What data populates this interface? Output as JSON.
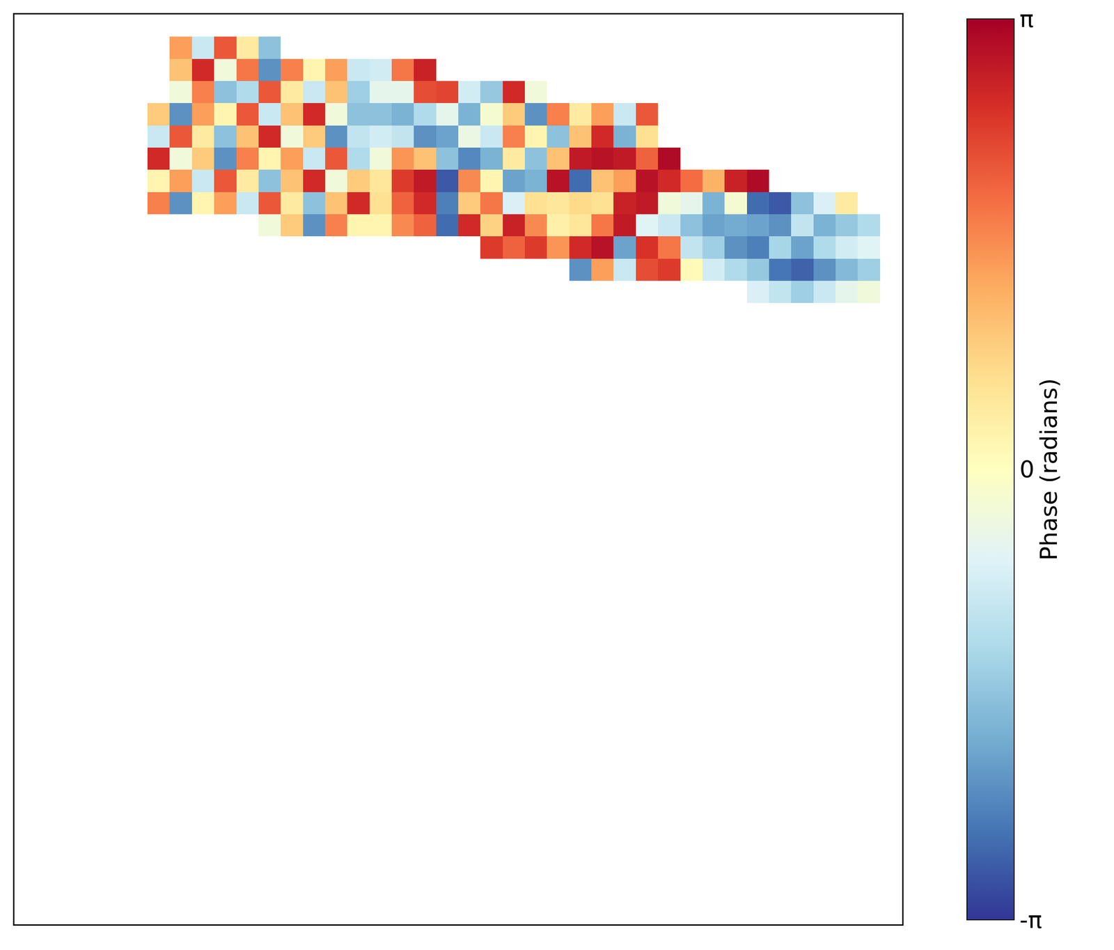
{
  "chart_data": {
    "type": "heatmap",
    "x": [
      0.5,
      1.5,
      2.5,
      3.5,
      4.5,
      5.5,
      6.5,
      7.5,
      8.5,
      9.5,
      10.5,
      11.5,
      12.5,
      13.5,
      14.5,
      15.5,
      16.5,
      17.5,
      18.5,
      19.5,
      20.5,
      21.5,
      22.5,
      23.5,
      24.5,
      25.5,
      26.5,
      27.5,
      28.5,
      29.5,
      30.5,
      31.5,
      32.5,
      33.5,
      34.5,
      35.5,
      36.5,
      37.5,
      38.5,
      39.5
    ],
    "y": [
      39.5,
      38.5,
      37.5,
      36.5,
      35.5,
      34.5,
      33.5,
      32.5,
      31.5,
      30.5,
      29.5,
      28.5
    ],
    "z": [
      [
        null,
        null,
        null,
        null,
        null,
        null,
        null,
        1.4,
        -0.9,
        2.1,
        0.4,
        -1.6,
        null,
        null,
        null,
        null,
        null,
        null,
        null,
        null,
        null,
        null,
        null,
        null,
        null,
        null,
        null,
        null,
        null,
        null,
        null,
        null,
        null,
        null,
        null,
        null,
        null,
        null,
        null,
        null
      ],
      [
        null,
        null,
        null,
        null,
        null,
        null,
        null,
        1.0,
        2.6,
        -0.3,
        1.8,
        -2.2,
        1.7,
        0.2,
        1.4,
        -0.9,
        -0.8,
        1.8,
        2.7,
        null,
        null,
        null,
        null,
        null,
        null,
        null,
        null,
        null,
        null,
        null,
        null,
        null,
        null,
        null,
        null,
        null,
        null,
        null,
        null,
        null
      ],
      [
        null,
        null,
        null,
        null,
        null,
        null,
        null,
        -0.3,
        1.7,
        -1.6,
        -1.2,
        2.1,
        0.4,
        -0.9,
        1.0,
        -1.4,
        -0.5,
        -0.5,
        2.2,
        2.3,
        -0.8,
        -1.5,
        2.6,
        -0.3,
        null,
        null,
        null,
        null,
        null,
        null,
        null,
        null,
        null,
        null,
        null,
        null,
        null,
        null,
        null,
        null
      ],
      [
        null,
        null,
        null,
        null,
        null,
        null,
        0.9,
        -2.2,
        1.4,
        0.2,
        2.1,
        -0.9,
        1.0,
        2.6,
        -0.3,
        -1.6,
        -1.6,
        -1.8,
        -1.2,
        -0.5,
        -1.8,
        -0.2,
        0.9,
        -2.2,
        1.7,
        0.4,
        1.4,
        -0.9,
        2.1,
        null,
        null,
        null,
        null,
        null,
        null,
        null,
        null,
        null,
        null,
        null
      ],
      [
        null,
        null,
        null,
        null,
        null,
        null,
        -0.9,
        2.1,
        0.4,
        -1.6,
        1.0,
        2.6,
        -0.3,
        0.9,
        -2.2,
        -1.0,
        -0.8,
        -1.0,
        -2.2,
        -2.0,
        -0.4,
        -0.9,
        1.7,
        0.2,
        -1.6,
        1.0,
        2.6,
        -1.8,
        0.6,
        null,
        null,
        null,
        null,
        null,
        null,
        null,
        null,
        null,
        null,
        null
      ],
      [
        null,
        null,
        null,
        null,
        null,
        null,
        2.6,
        -0.3,
        0.9,
        -2.2,
        1.7,
        0.2,
        1.4,
        -0.9,
        2.1,
        -1.2,
        -0.3,
        1.5,
        1.0,
        -1.6,
        -2.3,
        -1.8,
        0.4,
        -1.6,
        1.0,
        2.8,
        2.9,
        2.8,
        2.0,
        3.0,
        null,
        null,
        null,
        null,
        null,
        null,
        null,
        null,
        null,
        null
      ],
      [
        null,
        null,
        null,
        null,
        null,
        null,
        0.2,
        1.4,
        -0.9,
        2.1,
        0.4,
        -1.6,
        1.0,
        2.6,
        -0.3,
        0.9,
        0.5,
        2.4,
        2.8,
        -2.8,
        1.6,
        0.2,
        -2.0,
        -1.8,
        2.9,
        -2.6,
        1.0,
        1.4,
        2.9,
        2.6,
        1.9,
        1.2,
        2.7,
        3.0,
        null,
        null,
        null,
        null,
        null,
        null
      ],
      [
        null,
        null,
        null,
        null,
        null,
        null,
        1.7,
        -2.2,
        0.2,
        1.4,
        -0.9,
        2.1,
        0.4,
        -1.6,
        1.0,
        2.6,
        0.6,
        2.0,
        2.6,
        -2.4,
        0.9,
        1.8,
        -0.7,
        0.6,
        0.5,
        0.7,
        0.6,
        2.7,
        2.8,
        -0.3,
        -0.5,
        -1.8,
        -0.2,
        -2.6,
        -2.8,
        -1.6,
        -0.7,
        0.4,
        null,
        null
      ],
      [
        null,
        null,
        null,
        null,
        null,
        null,
        null,
        null,
        null,
        null,
        null,
        -0.3,
        0.9,
        -2.2,
        1.7,
        0.2,
        0.2,
        1.6,
        2.0,
        -2.6,
        2.6,
        0.8,
        2.7,
        1.6,
        0.3,
        0.5,
        1.8,
        2.8,
        -0.6,
        -0.9,
        -1.6,
        -2.0,
        -1.9,
        -2.0,
        -2.2,
        -1.0,
        -1.8,
        -1.5,
        -1.2,
        null
      ],
      [
        null,
        null,
        null,
        null,
        null,
        null,
        null,
        null,
        null,
        null,
        null,
        null,
        null,
        null,
        null,
        null,
        null,
        null,
        null,
        null,
        null,
        2.4,
        2.0,
        2.4,
        1.5,
        2.6,
        2.9,
        -2.0,
        2.5,
        1.8,
        -1.0,
        -1.4,
        -2.2,
        -2.4,
        -1.3,
        -2.0,
        -1.2,
        -0.8,
        -0.6,
        null
      ],
      [
        null,
        null,
        null,
        null,
        null,
        null,
        null,
        null,
        null,
        null,
        null,
        null,
        null,
        null,
        null,
        null,
        null,
        null,
        null,
        null,
        null,
        null,
        null,
        null,
        null,
        -2.2,
        1.4,
        -0.9,
        2.2,
        2.4,
        0.1,
        -0.8,
        -1.2,
        -1.5,
        -2.5,
        -2.7,
        -2.2,
        -1.7,
        -1.4,
        null
      ],
      [
        null,
        null,
        null,
        null,
        null,
        null,
        null,
        null,
        null,
        null,
        null,
        null,
        null,
        null,
        null,
        null,
        null,
        null,
        null,
        null,
        null,
        null,
        null,
        null,
        null,
        null,
        null,
        null,
        null,
        null,
        null,
        null,
        null,
        -0.7,
        -1.0,
        -1.4,
        -0.9,
        -0.5,
        -0.3,
        null
      ]
    ],
    "xlim": [
      0,
      40
    ],
    "ylim": [
      0,
      41
    ],
    "tick_labels": false,
    "grid": false,
    "colorbar": {
      "title": "Phase (radians)",
      "range": [
        -3.14159,
        3.14159
      ],
      "ticks": [
        {
          "value": -3.14159,
          "label": "-π"
        },
        {
          "value": 0,
          "label": "0"
        },
        {
          "value": 3.14159,
          "label": "π"
        }
      ]
    }
  }
}
